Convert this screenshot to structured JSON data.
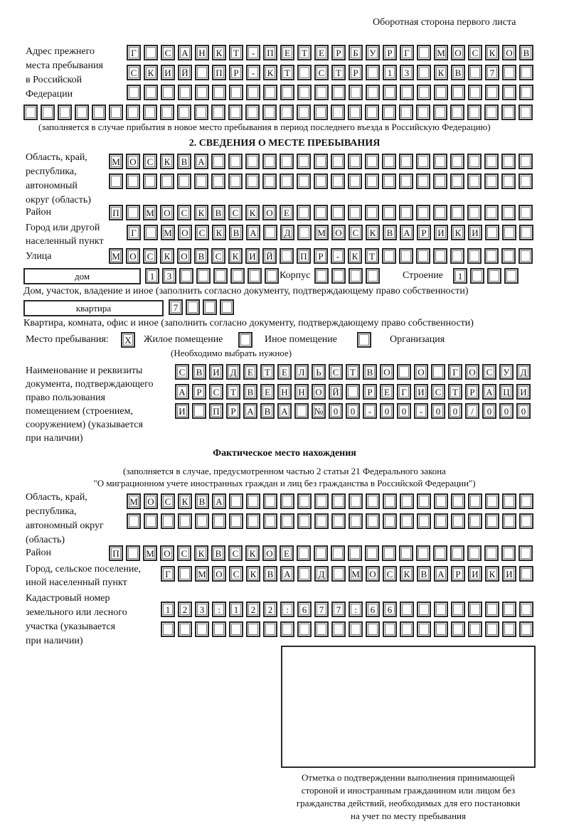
{
  "header_note": "Оборотная сторона первого листа",
  "previous_address": {
    "label": [
      "Адрес прежнего",
      "места пребывания",
      "в Российской",
      "Федерации"
    ],
    "rows": [
      "Г САНКТ-ПЕТЕРБУРГ МОСКОВ",
      "СКИЙ ПР-КТ СТР 13 КВ 7  ",
      "                        ",
      "                              "
    ],
    "note": "(заполняется в случае прибытия в новое место пребывания в период последнего въезда в Российскую Федерацию)"
  },
  "section2": {
    "title": "2. СВЕДЕНИЯ О МЕСТЕ ПРЕБЫВАНИЯ",
    "region_label": [
      "Область, край,",
      "республика,",
      "автономный",
      "округ (область)"
    ],
    "region_rows": [
      "МОСКВА                   ",
      "                         "
    ],
    "district_label": "Район",
    "district_row": "П МОСКВСКОЕ              ",
    "city_label": [
      "Город или другой",
      "населенный пункт"
    ],
    "city_row": "Г МОСКВА Д МОСКВАРИКИ   ",
    "street_label": "Улица",
    "street_row": "МОСКОВСКИЙ ПР-КТ         ",
    "house_type": "дом",
    "house_cells": "13      ",
    "korpus_label": "Корпус",
    "korpus_cells": "    ",
    "building_label": "Строение",
    "building_cells": "1   ",
    "house_note": "Дом, участок, владение и иное (заполнить согласно документу, подтверждающему право собственности)",
    "apartment_type": "квартира",
    "apartment_cells": "7   ",
    "apartment_note": "Квартира, комната, офис и иное (заполнить согласно документу, подтверждающему право собственности)",
    "stay_place_label": "Место пребывания:",
    "stay_options": [
      {
        "label": "Жилое помещение",
        "mark": "X"
      },
      {
        "label": "Иное помещение",
        "mark": ""
      },
      {
        "label": "Организация",
        "mark": ""
      }
    ],
    "stay_hint": "(Необходимо выбрать нужное)",
    "document_label": [
      "Наименование и реквизиты",
      "документа, подтверждающего",
      "право пользования",
      "помещением (строением,",
      "сооружением) (указывается",
      "при наличии)"
    ],
    "document_rows": [
      "СВИДЕТЕЛЬСТВО О ГОСУД",
      "АРСТВЕННОЙ РЕГИСТРАЦИ",
      "И ПРАВА №00-00-00/000"
    ]
  },
  "actual_location": {
    "title": "Фактическое место нахождения",
    "subtitle": [
      "(заполняется в случае, предусмотренном частью 2 статьи 21 Федерального закона",
      "\"О миграционном учете иностранных граждан и лиц без гражданства в Российской Федерации\")"
    ],
    "region_label": [
      "Область, край,",
      "республика,",
      "автономный округ",
      "(область)"
    ],
    "region_rows": [
      "МОСКВА                  ",
      "                        "
    ],
    "district_label": "Район",
    "district_row": "П МОСКВСКОЕ              ",
    "city_label": [
      "Город, сельское поселение,",
      "иной населенный пункт"
    ],
    "city_row": "Г МОСКВА Д МОСКВАРИКИ ",
    "cadastral_label": [
      "Кадастровый номер",
      "земельного или лесного",
      "участка (указывается",
      "при наличии)"
    ],
    "cadastral_rows": [
      "123:122:677:66        ",
      "                      "
    ]
  },
  "confirmation_caption": [
    "Отметка о подтверждении выполнения принимающей",
    "стороной и иностранным гражданином или лицом без",
    "гражданства действий, необходимых для его постановки",
    "на учет по месту пребывания"
  ]
}
